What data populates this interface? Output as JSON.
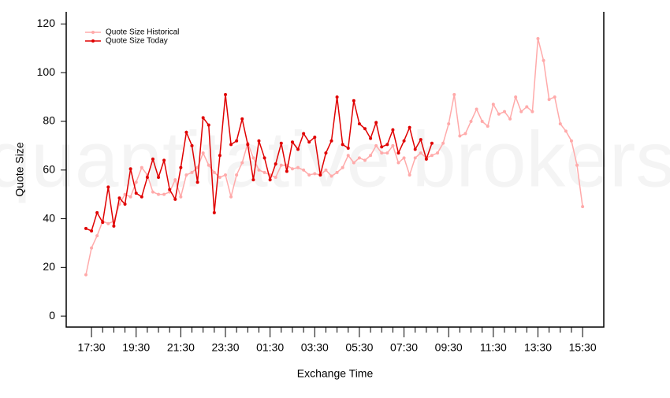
{
  "chart_data": {
    "type": "line",
    "watermark": "quantitative brokers",
    "xlabel": "Exchange Time",
    "ylabel": "Quote Size",
    "categories": [
      null,
      "17:30",
      null,
      null,
      null,
      null,
      null,
      null,
      null,
      "19:30",
      null,
      null,
      null,
      null,
      null,
      null,
      null,
      "21:30",
      null,
      null,
      null,
      null,
      null,
      null,
      null,
      "23:30",
      null,
      null,
      null,
      null,
      null,
      null,
      null,
      "01:30",
      null,
      null,
      null,
      null,
      null,
      null,
      null,
      "03:30",
      null,
      null,
      null,
      null,
      null,
      null,
      null,
      "05:30",
      null,
      null,
      null,
      null,
      null,
      null,
      null,
      "07:30",
      null,
      null,
      null,
      null,
      null,
      null,
      null,
      "09:30",
      null,
      null,
      null,
      null,
      null,
      null,
      null,
      "11:30",
      null,
      null,
      null,
      null,
      null,
      null,
      null,
      "13:30",
      null,
      null,
      null,
      null,
      null,
      null,
      null,
      "15:30"
    ],
    "series": [
      {
        "name": "Quote Size Historical",
        "color": "#ffaaaa",
        "values": [
          17,
          28,
          33,
          39,
          38,
          39,
          46,
          50,
          49,
          55,
          61,
          58,
          51,
          50,
          50,
          51,
          56,
          49,
          58,
          59,
          61,
          67,
          62,
          59,
          57,
          58,
          49,
          58,
          63,
          71,
          65,
          60,
          59,
          58,
          57,
          62,
          62,
          60.5,
          61,
          60,
          58,
          58.5,
          58,
          60,
          57.5,
          59,
          61,
          66,
          63,
          65,
          64,
          66,
          70,
          67,
          67,
          70,
          63,
          65,
          58,
          65,
          67,
          65,
          66,
          67,
          71,
          79,
          91,
          74,
          75,
          80,
          85,
          80,
          78,
          87,
          83,
          84,
          81,
          90,
          84,
          86,
          84,
          114,
          105,
          89,
          90,
          79,
          76,
          72,
          62,
          45
        ]
      },
      {
        "name": "Quote Size Today",
        "color": "#e00000",
        "values": [
          36,
          35,
          42.5,
          38.5,
          53,
          37,
          48.5,
          46,
          60.5,
          50.5,
          49,
          57,
          64.5,
          57,
          64,
          52,
          48,
          61,
          75.5,
          70,
          55,
          81.5,
          78.5,
          42.5,
          66,
          91,
          70.5,
          72,
          81,
          70.5,
          56,
          72,
          65,
          56,
          62.5,
          71,
          59.5,
          71.5,
          68.5,
          75,
          71.5,
          73.5,
          58,
          67,
          72,
          90,
          70.5,
          69,
          88.5,
          79,
          77,
          73,
          79.5,
          69.5,
          70.5,
          76.5,
          67,
          72,
          77.5,
          68.5,
          72.5,
          64.5,
          71,
          null,
          null,
          null,
          null,
          null,
          null,
          null,
          null,
          null,
          null,
          null,
          null,
          null,
          null,
          null,
          null,
          null,
          null,
          null,
          null,
          null,
          null,
          null,
          null,
          null,
          null,
          null
        ]
      }
    ],
    "ylim": [
      -4.5,
      125
    ],
    "yticks": [
      0,
      20,
      40,
      60,
      80,
      100,
      120
    ]
  }
}
